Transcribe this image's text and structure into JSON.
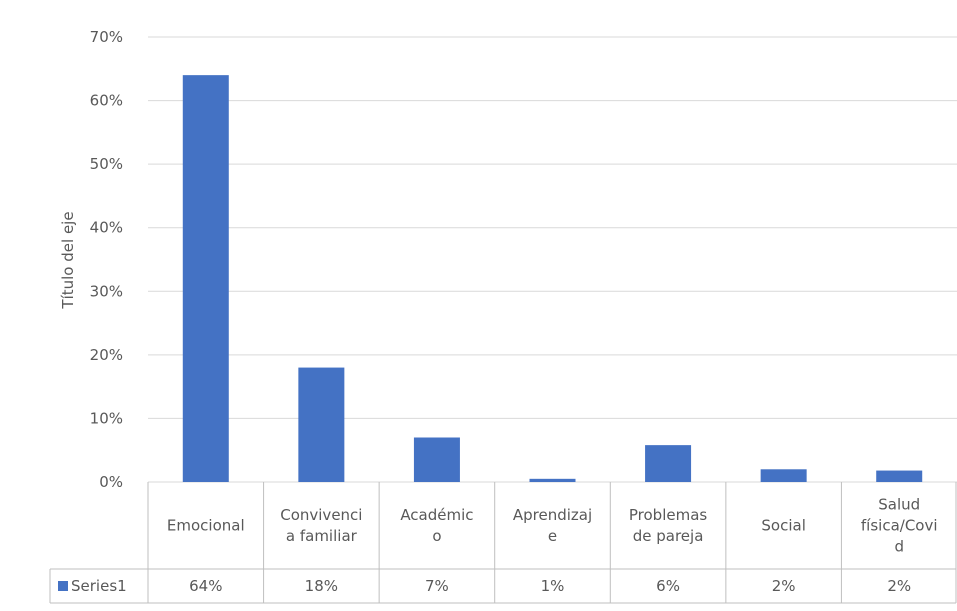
{
  "chart_data": {
    "type": "bar",
    "title": "",
    "ylabel": "Título del eje",
    "xlabel": "",
    "categories": [
      [
        "Emocional"
      ],
      [
        "Convivenci",
        "a familiar"
      ],
      [
        "Académic",
        "o"
      ],
      [
        "Aprendizaj",
        "e"
      ],
      [
        "Problemas",
        "de pareja"
      ],
      [
        "Social"
      ],
      [
        "Salud",
        "física/Covi",
        "d"
      ]
    ],
    "series": [
      {
        "name": "Series1",
        "values": [
          0.64,
          0.18,
          0.07,
          0.005,
          0.058,
          0.02,
          0.018
        ],
        "labels": [
          "64%",
          "18%",
          "7%",
          "1%",
          "6%",
          "2%",
          "2%"
        ]
      }
    ],
    "ylim": [
      0,
      0.7
    ],
    "yticks": [
      "0%",
      "10%",
      "20%",
      "30%",
      "40%",
      "50%",
      "60%",
      "70%"
    ],
    "grid": true,
    "data_table": true,
    "colors": {
      "bar": "#4472C4",
      "grid": "#D9D9D9",
      "text": "#595959",
      "table_border": "#BFBFBF"
    }
  }
}
